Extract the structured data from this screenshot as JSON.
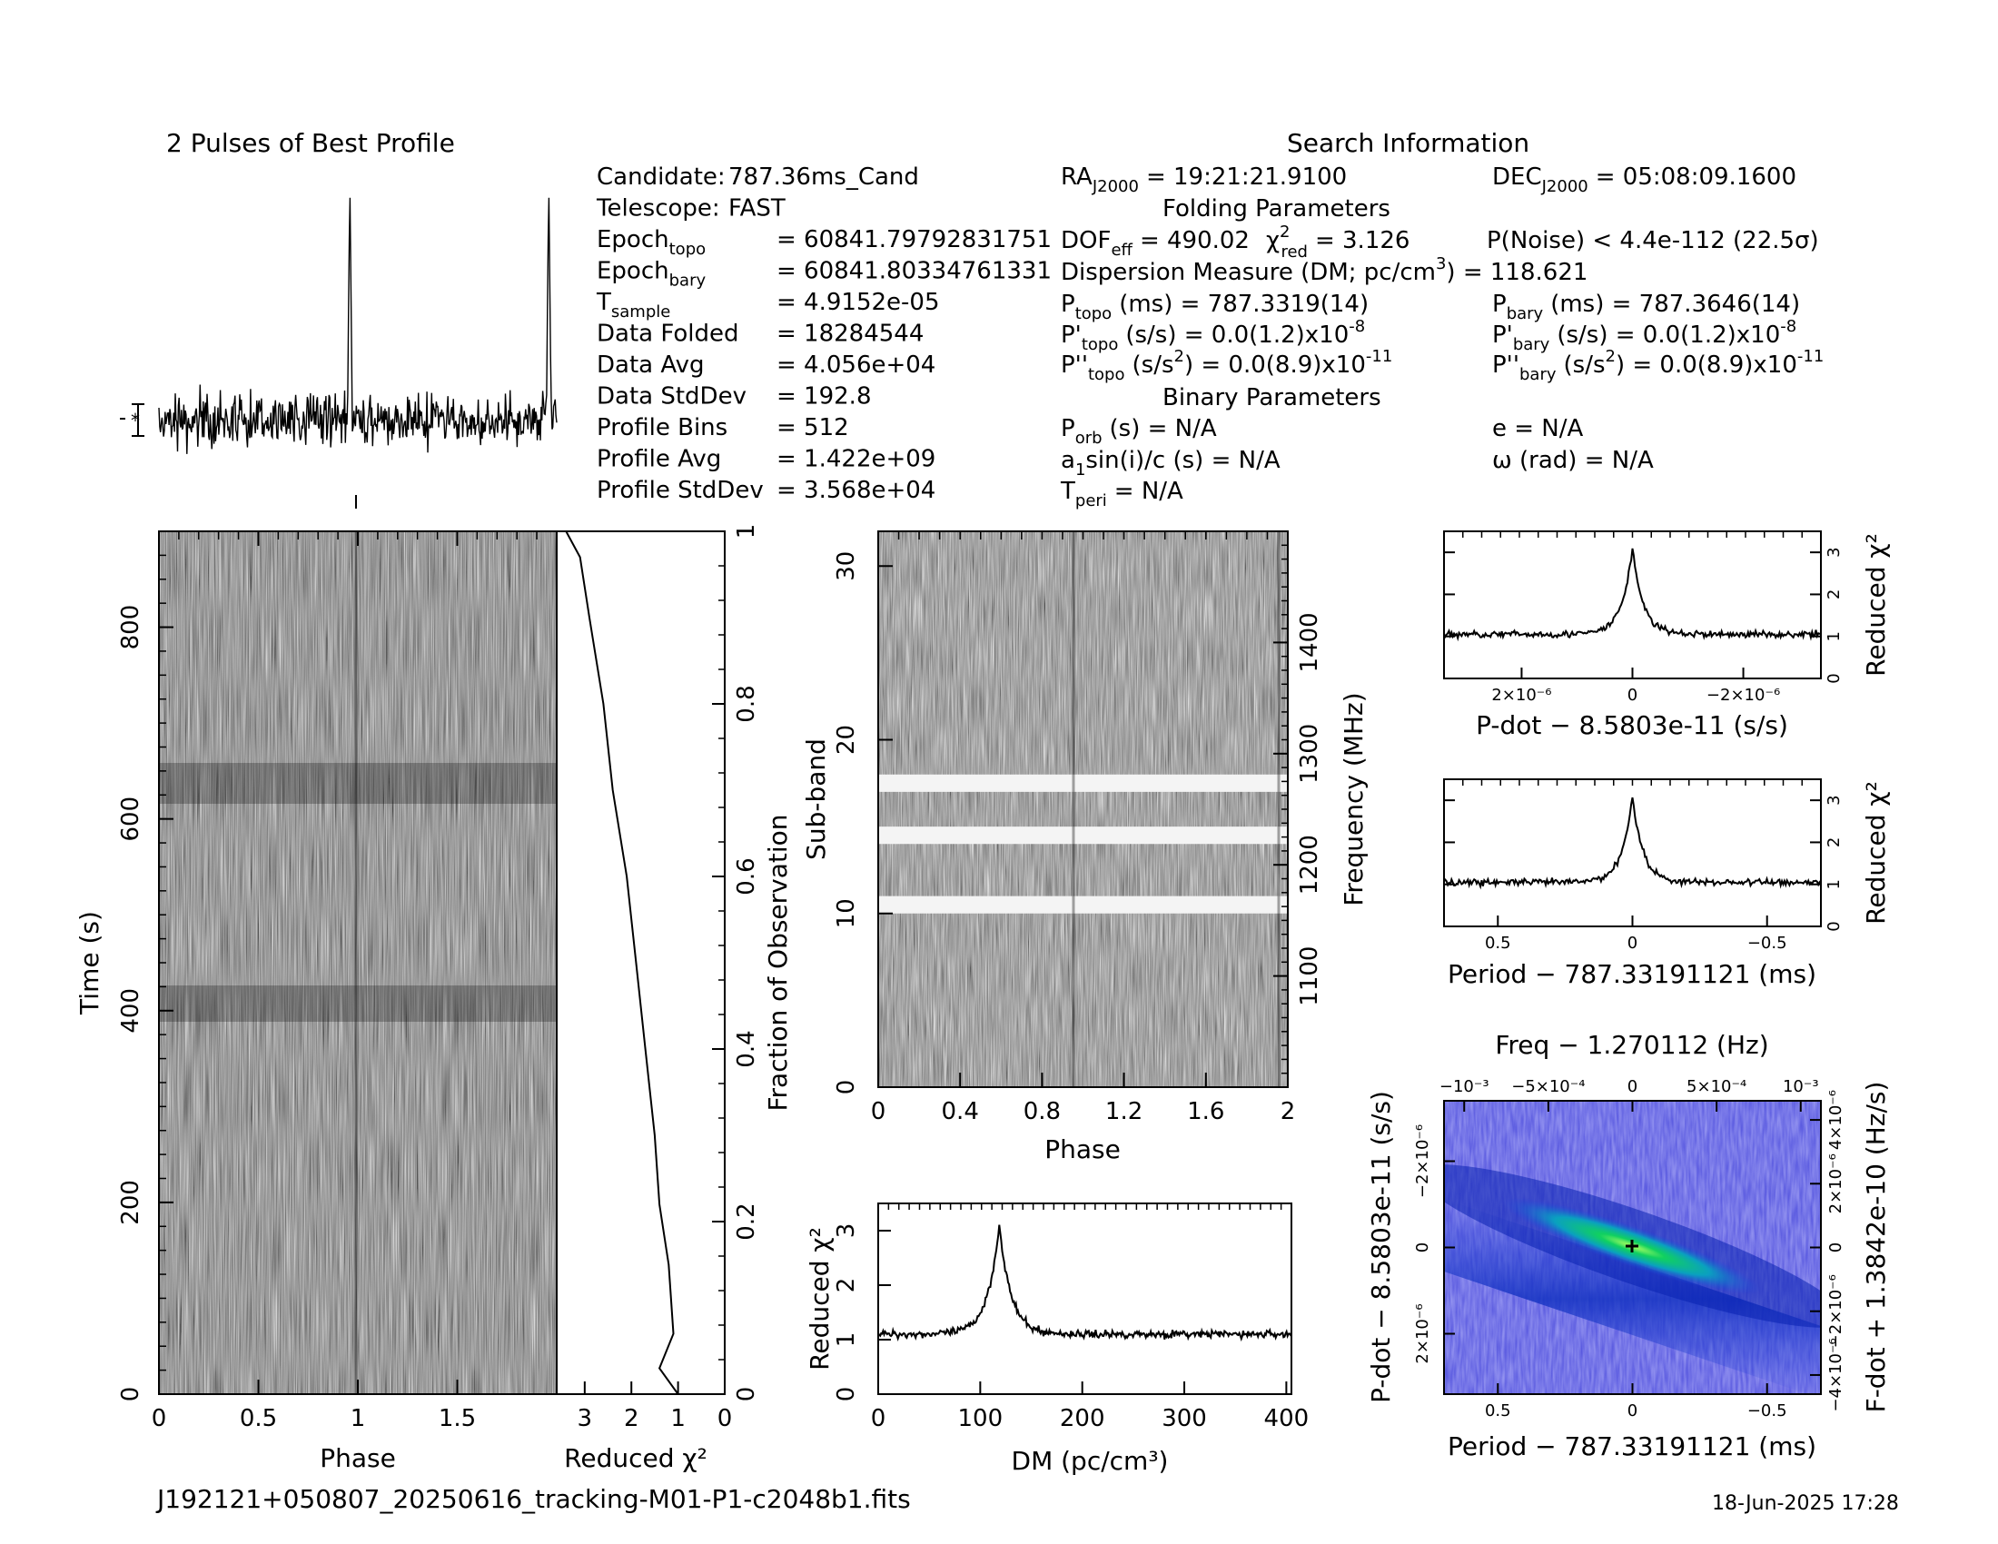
{
  "profile_title": "2 Pulses of Best Profile",
  "search_title": "Search Information",
  "info_col1": [
    {
      "label": "Candidate:",
      "value": "787.36ms_Cand"
    },
    {
      "label": "Telescope:",
      "value": "FAST"
    },
    {
      "label": "Epoch",
      "sub": "topo",
      "value": "= 60841.79792831751"
    },
    {
      "label": "Epoch",
      "sub": "bary",
      "value": "= 60841.80334761331"
    },
    {
      "label": "T",
      "sub": "sample",
      "value": "=   4.9152e-05"
    },
    {
      "label": "Data Folded",
      "value": "=   18284544"
    },
    {
      "label": "Data Avg",
      "value": "=   4.056e+04"
    },
    {
      "label": "Data StdDev",
      "value": "=   192.8"
    },
    {
      "label": "Profile Bins",
      "value": "=   512"
    },
    {
      "label": "Profile Avg",
      "value": "=   1.422e+09"
    },
    {
      "label": "Profile StdDev",
      "value": "=   3.568e+04"
    }
  ],
  "info_col2": {
    "ra": "RA",
    "ra_sub": "J2000",
    "ra_value": "= 19:21:21.9100",
    "folding_title": "Folding Parameters",
    "dof": "DOF",
    "dof_sub": "eff",
    "dof_value": "= 490.02",
    "chi": "χ",
    "chi_sup": "2",
    "chi_sub": "red",
    "chi_value": "= 3.126",
    "dm_line_1": "Dispersion Measure (DM; pc/cm",
    "dm_line_sup": "3",
    "dm_line_2": ") = 118.621",
    "ptopo": "P",
    "ptopo_sub": "topo",
    "ptopo_value": "(ms) =  787.3319(14)",
    "pdtopo": "P'",
    "pdtopo_sub": "topo",
    "pdtopo_value": "(s/s) = 0.0(1.2)x10",
    "pdtopo_exp": "-8",
    "pddtopo": "P''",
    "pddtopo_sub": "topo",
    "pddtopo_value_a": "(s/s",
    "pddtopo_value_sup": "2",
    "pddtopo_value_b": ") = 0.0(8.9)x10",
    "pddtopo_exp": "-11",
    "binary_title": "Binary Parameters",
    "porb": "P",
    "porb_sub": "orb",
    "porb_value": "(s) = N/A",
    "asini": "a",
    "asini_sub": "1",
    "asini_value": "sin(i)/c (s) = N/A",
    "tperi": "T",
    "tperi_sub": "peri",
    "tperi_value": "= N/A"
  },
  "info_col3": {
    "dec": "DEC",
    "dec_sub": "J2000",
    "dec_value": "= 05:08:09.1600",
    "pnoise": "P(Noise) < 4.4e-112  (22.5σ)",
    "pbary": "P",
    "pbary_sub": "bary",
    "pbary_value": "(ms) =  787.3646(14)",
    "pdbary": "P'",
    "pdbary_sub": "bary",
    "pdbary_value": "(s/s) = 0.0(1.2)x10",
    "pdbary_exp": "-8",
    "pddbary": "P''",
    "pddbary_sub": "bary",
    "pddbary_value_a": "(s/s",
    "pddbary_value_sup": "2",
    "pddbary_value_b": ") = 0.0(8.9)x10",
    "pddbary_exp": "-11",
    "e_value": "e = N/A",
    "omega_value": "ω (rad) = N/A"
  },
  "footer": {
    "filename": "J192121+050807_20250616_tracking-M01-P1-c2048b1.fits",
    "date": "18-Jun-2025 17:28"
  },
  "chart_data": [
    {
      "type": "line",
      "title": "2 Pulses of Best Profile",
      "x_range": [
        0,
        2
      ],
      "peak_phase": [
        0.96,
        1.96
      ],
      "profile_avg": 1422000000.0,
      "profile_stddev": 35680.0
    },
    {
      "type": "heatmap",
      "xlabel": "Phase",
      "ylabel": "Time (s)",
      "x_ticks": [
        "0",
        "0.5",
        "1",
        "1.5"
      ],
      "y_ticks": [
        "0",
        "200",
        "400",
        "600",
        "800"
      ],
      "xlim": [
        0,
        2
      ],
      "ylim": [
        0,
        900
      ]
    },
    {
      "type": "line",
      "xlabel": "Reduced χ²",
      "ylabel": "Fraction of Observation",
      "x_ticks": [
        "3",
        "2",
        "1",
        "0"
      ],
      "y_ticks": [
        "0",
        "0.2",
        "0.4",
        "0.6",
        "0.8",
        "1"
      ],
      "xlim": [
        3.6,
        0
      ],
      "ylim": [
        0,
        1
      ],
      "points": [
        [
          1.0,
          0.0
        ],
        [
          1.4,
          0.03
        ],
        [
          1.1,
          0.07
        ],
        [
          1.2,
          0.15
        ],
        [
          1.4,
          0.22
        ],
        [
          1.5,
          0.3
        ],
        [
          1.7,
          0.4
        ],
        [
          1.9,
          0.5
        ],
        [
          2.1,
          0.6
        ],
        [
          2.4,
          0.7
        ],
        [
          2.6,
          0.8
        ],
        [
          2.9,
          0.9
        ],
        [
          3.1,
          0.97
        ],
        [
          3.4,
          1.0
        ]
      ]
    },
    {
      "type": "heatmap",
      "xlabel": "Phase",
      "ylabel": "Sub-band",
      "y2label": "Frequency (MHz)",
      "x_ticks": [
        "0",
        "0.4",
        "0.8",
        "1.2",
        "1.6",
        "2"
      ],
      "y_ticks": [
        "0",
        "10",
        "20",
        "30"
      ],
      "y2_ticks": [
        "1100",
        "1200",
        "1300",
        "1400"
      ],
      "xlim": [
        0,
        2
      ],
      "ylim": [
        0,
        32
      ],
      "masked_subbands": [
        10,
        14,
        17
      ]
    },
    {
      "type": "line",
      "xlabel": "DM (pc/cm³)",
      "ylabel": "Reduced χ²",
      "x_ticks": [
        "0",
        "100",
        "200",
        "300",
        "400"
      ],
      "y_ticks": [
        "0",
        "1",
        "2",
        "3"
      ],
      "xlim": [
        0,
        405
      ],
      "ylim": [
        0,
        3.5
      ],
      "peak": [
        118.6,
        3.126
      ],
      "baseline": 1.1
    },
    {
      "type": "line",
      "xlabel": "P-dot − 8.5803e-11 (s/s)",
      "ylabel": "Reduced χ²",
      "x_ticks": [
        "2×10⁻⁶",
        "0",
        "−2×10⁻⁶"
      ],
      "y_ticks": [
        "0",
        "1",
        "2",
        "3"
      ],
      "xlim": [
        3.4e-06,
        -3.4e-06
      ],
      "ylim": [
        0,
        3.5
      ],
      "peak": [
        0,
        3.1
      ],
      "baseline": 1.05
    },
    {
      "type": "line",
      "xlabel": "Period − 787.33191121 (ms)",
      "ylabel": "Reduced χ²",
      "x_ticks": [
        "0.5",
        "0",
        "−0.5"
      ],
      "y_ticks": [
        "0",
        "1",
        "2",
        "3"
      ],
      "xlim": [
        0.7,
        -0.7
      ],
      "ylim": [
        0,
        3.5
      ],
      "peak": [
        0,
        3.1
      ],
      "baseline": 1.05
    },
    {
      "type": "heatmap",
      "title": "Freq − 1.270112 (Hz)",
      "xlabel": "Period − 787.33191121 (ms)",
      "ylabel": "P-dot − 8.5803e-11 (s/s)",
      "y2label": "F-dot + 1.3842e-10 (Hz/s)",
      "x_ticks": [
        "0.5",
        "0",
        "−0.5"
      ],
      "x2_ticks": [
        "−10⁻³",
        "−5×10⁻⁴",
        "0",
        "5×10⁻⁴",
        "10⁻³"
      ],
      "y_ticks": [
        "−2×10⁻⁶",
        "0",
        "2×10⁻⁶"
      ],
      "y2_ticks": [
        "4×10⁻⁶",
        "2×10⁻⁶",
        "0",
        "−2×10⁻⁶",
        "−4×10⁻⁶"
      ],
      "xlim": [
        0.7,
        -0.7
      ],
      "ylim": [
        3.4e-06,
        -3.4e-06
      ],
      "best": [
        0,
        0
      ],
      "colors": {
        "low": "#3a3ad8",
        "mid": "#00b050",
        "high": "#30e070"
      }
    }
  ]
}
